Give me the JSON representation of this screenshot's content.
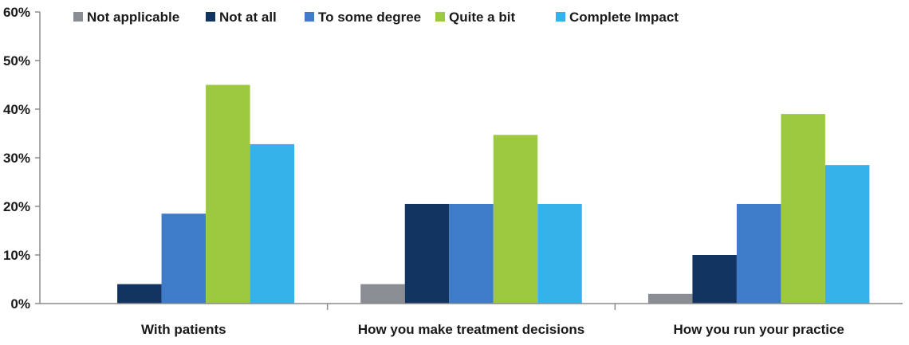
{
  "chart_data": {
    "type": "bar",
    "title": "",
    "xlabel": "",
    "ylabel": "",
    "ylim": [
      0,
      60
    ],
    "yticks": [
      0,
      10,
      20,
      30,
      40,
      50,
      60
    ],
    "ytick_labels": [
      "0%",
      "10%",
      "20%",
      "30%",
      "40%",
      "50%",
      "60%"
    ],
    "categories": [
      "With patients",
      "How you make treatment decisions",
      "How you run your practice"
    ],
    "legend_position": "top",
    "series": [
      {
        "name": "Not applicable",
        "color": "#8a8d94",
        "values": [
          0,
          4,
          2
        ]
      },
      {
        "name": "Not at all",
        "color": "#123460",
        "values": [
          4,
          20.5,
          10
        ]
      },
      {
        "name": "To some degree",
        "color": "#3e7bc8",
        "values": [
          18.5,
          20.5,
          20.5
        ]
      },
      {
        "name": "Quite a bit",
        "color": "#9cc940",
        "values": [
          45,
          34.7,
          39
        ]
      },
      {
        "name": "Complete Impact",
        "color": "#34b3ea",
        "values": [
          32.8,
          20.5,
          28.5
        ]
      }
    ]
  }
}
